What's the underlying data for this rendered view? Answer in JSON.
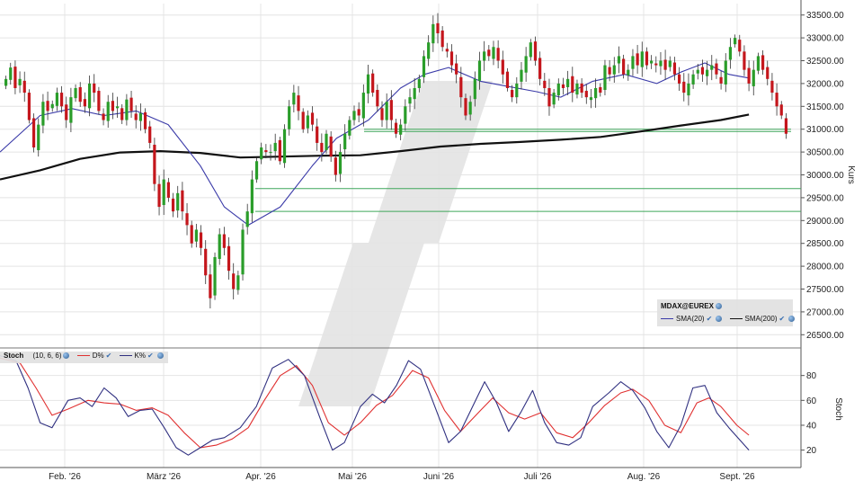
{
  "colors": {
    "up": "#2a9d2a",
    "down": "#c4161c",
    "sma20": "#3a3aa8",
    "sma200": "#111111",
    "stoch_d": "#e03030",
    "stoch_k": "#303080",
    "hline": "#3fa65a",
    "grid": "#e4e4e4"
  },
  "main_legend": {
    "symbol": "MDAX@EUREX",
    "sma20_label": "SMA(20)",
    "sma200_label": "SMA(200)"
  },
  "stoch_legend": {
    "name": "Stoch",
    "params": "(10, 6, 6)",
    "d_label": "D%",
    "k_label": "K%"
  },
  "chart_data": [
    {
      "type": "candlestick",
      "ylabel": "Kurs",
      "ylim": [
        26250,
        33750
      ],
      "yticks": [
        "26500.00",
        "27000.00",
        "27500.00",
        "28000.00",
        "28500.00",
        "29000.00",
        "29500.00",
        "30000.00",
        "30500.00",
        "31000.00",
        "31500.00",
        "32000.00",
        "32500.00",
        "33000.00",
        "33500.00"
      ],
      "xticks": [
        "Feb. '26",
        "März '26",
        "Apr. '26",
        "Mai '26",
        "Juni '26",
        "Juli '26",
        "Aug. '26",
        "Sept. '26"
      ],
      "grid": true,
      "series": [
        {
          "name": "MDAX@EUREX",
          "kind": "ohlc",
          "close_path": [
            32100,
            32350,
            31900,
            32100,
            31800,
            31200,
            30600,
            31100,
            31600,
            31400,
            31550,
            31800,
            31500,
            31200,
            31700,
            31900,
            31600,
            31500,
            32000,
            31800,
            31400,
            31200,
            31600,
            31400,
            31500,
            31200,
            31650,
            31400,
            31200,
            31350,
            31000,
            30700,
            29800,
            29300,
            29900,
            29500,
            29200,
            29600,
            29200,
            28900,
            28500,
            28800,
            28400,
            27800,
            27300,
            28200,
            28700,
            28400,
            27900,
            27500,
            27800,
            28800,
            29200,
            29900,
            30300,
            30600,
            30500,
            30500,
            30700,
            30300,
            31000,
            31500,
            31800,
            31400,
            31000,
            31300,
            31100,
            30700,
            30500,
            30900,
            30400,
            30000,
            30500,
            30900,
            31200,
            31400,
            31300,
            31800,
            32200,
            31800,
            31500,
            31200,
            31600,
            31200,
            30900,
            31100,
            31500,
            31700,
            31900,
            32100,
            32600,
            32900,
            33300,
            33100,
            32800,
            32700,
            32400,
            32200,
            31700,
            31300,
            31600,
            32100,
            32500,
            32700,
            32600,
            32800,
            32500,
            32200,
            31900,
            31700,
            32000,
            32300,
            32600,
            32900,
            32500,
            32100,
            31900,
            31500,
            31800,
            32000,
            31900,
            32100,
            31800,
            32000,
            31800,
            31700,
            31700,
            31900,
            31800,
            32400,
            32200,
            32400,
            32600,
            32200,
            32300,
            32600,
            32400,
            32700,
            32400,
            32500,
            32400,
            32500,
            32300,
            32500,
            32200,
            32000,
            31800,
            32000,
            32200,
            32300,
            32200,
            32300,
            32400,
            32200,
            32000,
            32500,
            32800,
            33000,
            32700,
            32300,
            32000,
            32300,
            32600,
            32300,
            32100,
            31800,
            31500,
            31300,
            30900
          ]
        },
        {
          "name": "SMA(20)",
          "kind": "line",
          "points": [
            [
              0,
              30500
            ],
            [
              0.05,
              31300
            ],
            [
              0.09,
              31450
            ],
            [
              0.13,
              31300
            ],
            [
              0.17,
              31400
            ],
            [
              0.21,
              31100
            ],
            [
              0.25,
              30200
            ],
            [
              0.28,
              29300
            ],
            [
              0.31,
              28900
            ],
            [
              0.35,
              29300
            ],
            [
              0.39,
              30200
            ],
            [
              0.42,
              30800
            ],
            [
              0.46,
              31200
            ],
            [
              0.5,
              31900
            ],
            [
              0.53,
              32200
            ],
            [
              0.56,
              32350
            ],
            [
              0.6,
              32050
            ],
            [
              0.63,
              31950
            ],
            [
              0.67,
              31820
            ],
            [
              0.7,
              31700
            ],
            [
              0.74,
              32050
            ],
            [
              0.78,
              32200
            ],
            [
              0.82,
              32000
            ],
            [
              0.85,
              32250
            ],
            [
              0.88,
              32450
            ],
            [
              0.91,
              32200
            ],
            [
              0.935,
              32120
            ]
          ]
        },
        {
          "name": "SMA(200)",
          "kind": "line",
          "points": [
            [
              0,
              29900
            ],
            [
              0.05,
              30100
            ],
            [
              0.1,
              30350
            ],
            [
              0.15,
              30490
            ],
            [
              0.2,
              30520
            ],
            [
              0.25,
              30480
            ],
            [
              0.3,
              30380
            ],
            [
              0.35,
              30400
            ],
            [
              0.4,
              30420
            ],
            [
              0.45,
              30430
            ],
            [
              0.5,
              30520
            ],
            [
              0.55,
              30620
            ],
            [
              0.6,
              30680
            ],
            [
              0.65,
              30720
            ],
            [
              0.7,
              30770
            ],
            [
              0.75,
              30830
            ],
            [
              0.8,
              30950
            ],
            [
              0.85,
              31080
            ],
            [
              0.9,
              31200
            ],
            [
              0.935,
              31320
            ]
          ]
        }
      ],
      "hlines": [
        31000,
        30950,
        29700,
        29200
      ]
    },
    {
      "type": "line",
      "title": "Stoch (10, 6, 6)",
      "ylabel": "Stoch",
      "ylim": [
        6,
        100
      ],
      "yticks": [
        "20",
        "40",
        "60",
        "80"
      ],
      "series": [
        {
          "name": "K%",
          "points": [
            [
              0,
              96
            ],
            [
              0.02,
              92
            ],
            [
              0.035,
              70
            ],
            [
              0.05,
              42
            ],
            [
              0.065,
              38
            ],
            [
              0.085,
              60
            ],
            [
              0.1,
              62
            ],
            [
              0.115,
              55
            ],
            [
              0.13,
              70
            ],
            [
              0.145,
              62
            ],
            [
              0.16,
              47
            ],
            [
              0.175,
              52
            ],
            [
              0.19,
              53
            ],
            [
              0.205,
              38
            ],
            [
              0.22,
              22
            ],
            [
              0.235,
              16
            ],
            [
              0.25,
              22
            ],
            [
              0.265,
              28
            ],
            [
              0.28,
              30
            ],
            [
              0.3,
              38
            ],
            [
              0.32,
              55
            ],
            [
              0.34,
              86
            ],
            [
              0.36,
              93
            ],
            [
              0.38,
              80
            ],
            [
              0.4,
              45
            ],
            [
              0.415,
              20
            ],
            [
              0.43,
              26
            ],
            [
              0.45,
              55
            ],
            [
              0.465,
              65
            ],
            [
              0.48,
              58
            ],
            [
              0.495,
              72
            ],
            [
              0.51,
              92
            ],
            [
              0.525,
              85
            ],
            [
              0.54,
              60
            ],
            [
              0.56,
              26
            ],
            [
              0.575,
              35
            ],
            [
              0.59,
              55
            ],
            [
              0.605,
              75
            ],
            [
              0.62,
              58
            ],
            [
              0.635,
              35
            ],
            [
              0.65,
              50
            ],
            [
              0.665,
              68
            ],
            [
              0.68,
              42
            ],
            [
              0.695,
              26
            ],
            [
              0.71,
              24
            ],
            [
              0.725,
              30
            ],
            [
              0.74,
              55
            ],
            [
              0.76,
              66
            ],
            [
              0.775,
              75
            ],
            [
              0.79,
              68
            ],
            [
              0.805,
              54
            ],
            [
              0.82,
              35
            ],
            [
              0.835,
              22
            ],
            [
              0.85,
              40
            ],
            [
              0.865,
              70
            ],
            [
              0.88,
              72
            ],
            [
              0.895,
              50
            ],
            [
              0.91,
              38
            ],
            [
              0.935,
              20
            ]
          ]
        },
        {
          "name": "D%",
          "points": [
            [
              0,
              94
            ],
            [
              0.025,
              90
            ],
            [
              0.045,
              70
            ],
            [
              0.065,
              48
            ],
            [
              0.085,
              53
            ],
            [
              0.11,
              60
            ],
            [
              0.13,
              58
            ],
            [
              0.15,
              57
            ],
            [
              0.17,
              52
            ],
            [
              0.19,
              54
            ],
            [
              0.21,
              48
            ],
            [
              0.23,
              34
            ],
            [
              0.25,
              22
            ],
            [
              0.27,
              24
            ],
            [
              0.29,
              29
            ],
            [
              0.31,
              38
            ],
            [
              0.33,
              60
            ],
            [
              0.35,
              80
            ],
            [
              0.37,
              88
            ],
            [
              0.39,
              72
            ],
            [
              0.41,
              42
            ],
            [
              0.43,
              32
            ],
            [
              0.45,
              42
            ],
            [
              0.47,
              56
            ],
            [
              0.49,
              64
            ],
            [
              0.515,
              84
            ],
            [
              0.535,
              78
            ],
            [
              0.555,
              52
            ],
            [
              0.575,
              35
            ],
            [
              0.6,
              52
            ],
            [
              0.615,
              62
            ],
            [
              0.635,
              50
            ],
            [
              0.655,
              45
            ],
            [
              0.675,
              50
            ],
            [
              0.695,
              34
            ],
            [
              0.715,
              30
            ],
            [
              0.735,
              42
            ],
            [
              0.755,
              56
            ],
            [
              0.775,
              66
            ],
            [
              0.79,
              69
            ],
            [
              0.81,
              60
            ],
            [
              0.83,
              40
            ],
            [
              0.85,
              34
            ],
            [
              0.87,
              58
            ],
            [
              0.885,
              62
            ],
            [
              0.9,
              55
            ],
            [
              0.92,
              40
            ],
            [
              0.935,
              32
            ]
          ]
        }
      ]
    }
  ]
}
